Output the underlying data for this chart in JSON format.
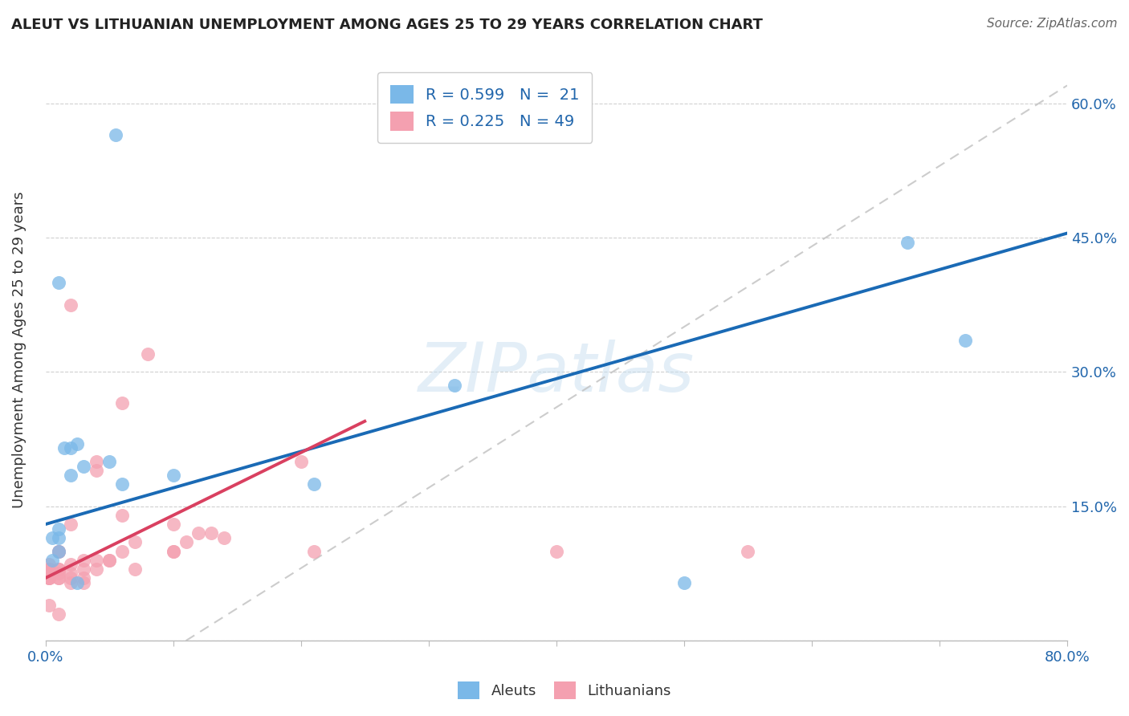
{
  "title": "ALEUT VS LITHUANIAN UNEMPLOYMENT AMONG AGES 25 TO 29 YEARS CORRELATION CHART",
  "source": "Source: ZipAtlas.com",
  "ylabel": "Unemployment Among Ages 25 to 29 years",
  "xlim": [
    0.0,
    0.8
  ],
  "ylim": [
    0.0,
    0.65
  ],
  "xticks": [
    0.0,
    0.1,
    0.2,
    0.3,
    0.4,
    0.5,
    0.6,
    0.7,
    0.8
  ],
  "xticklabels": [
    "0.0%",
    "",
    "",
    "",
    "",
    "",
    "",
    "",
    "80.0%"
  ],
  "ytick_positions": [
    0.0,
    0.15,
    0.3,
    0.45,
    0.6
  ],
  "yticklabels": [
    "",
    "15.0%",
    "30.0%",
    "45.0%",
    "60.0%"
  ],
  "aleut_color": "#7ab8e8",
  "lithuanian_color": "#f4a0b0",
  "trend_aleut_color": "#1a6ab5",
  "trend_lithuanian_color": "#d94060",
  "trend_dashed_color": "#c0c0c0",
  "legend_R_aleut": "R = 0.599",
  "legend_N_aleut": "N =  21",
  "legend_R_lith": "R = 0.225",
  "legend_N_lith": "N = 49",
  "aleut_line_x0": 0.0,
  "aleut_line_y0": 0.13,
  "aleut_line_x1": 0.8,
  "aleut_line_y1": 0.455,
  "lith_line_x0": 0.0,
  "lith_line_y0": 0.07,
  "lith_line_x1": 0.25,
  "lith_line_y1": 0.245,
  "dash_line_x0": 0.11,
  "dash_line_y0": 0.0,
  "dash_line_x1": 0.8,
  "dash_line_y1": 0.62,
  "aleut_x": [
    0.005,
    0.005,
    0.01,
    0.01,
    0.01,
    0.01,
    0.015,
    0.02,
    0.02,
    0.025,
    0.025,
    0.03,
    0.05,
    0.055,
    0.06,
    0.1,
    0.21,
    0.32,
    0.5,
    0.675,
    0.72
  ],
  "aleut_y": [
    0.09,
    0.115,
    0.1,
    0.115,
    0.125,
    0.4,
    0.215,
    0.215,
    0.185,
    0.22,
    0.065,
    0.195,
    0.2,
    0.565,
    0.175,
    0.185,
    0.175,
    0.285,
    0.065,
    0.445,
    0.335
  ],
  "lith_x": [
    0.003,
    0.003,
    0.003,
    0.003,
    0.003,
    0.003,
    0.003,
    0.003,
    0.01,
    0.01,
    0.01,
    0.01,
    0.01,
    0.01,
    0.01,
    0.01,
    0.02,
    0.02,
    0.02,
    0.02,
    0.02,
    0.02,
    0.03,
    0.03,
    0.03,
    0.03,
    0.04,
    0.04,
    0.04,
    0.04,
    0.05,
    0.05,
    0.06,
    0.06,
    0.06,
    0.07,
    0.07,
    0.08,
    0.1,
    0.1,
    0.1,
    0.11,
    0.12,
    0.13,
    0.14,
    0.2,
    0.21,
    0.4,
    0.55
  ],
  "lith_y": [
    0.07,
    0.07,
    0.07,
    0.075,
    0.08,
    0.08,
    0.085,
    0.04,
    0.07,
    0.07,
    0.075,
    0.08,
    0.08,
    0.1,
    0.1,
    0.03,
    0.065,
    0.07,
    0.075,
    0.085,
    0.13,
    0.375,
    0.065,
    0.07,
    0.08,
    0.09,
    0.08,
    0.09,
    0.19,
    0.2,
    0.09,
    0.09,
    0.1,
    0.14,
    0.265,
    0.08,
    0.11,
    0.32,
    0.1,
    0.1,
    0.13,
    0.11,
    0.12,
    0.12,
    0.115,
    0.2,
    0.1,
    0.1,
    0.1
  ],
  "watermark": "ZIPatlas",
  "background_color": "#ffffff",
  "grid_color": "#d0d0d0"
}
